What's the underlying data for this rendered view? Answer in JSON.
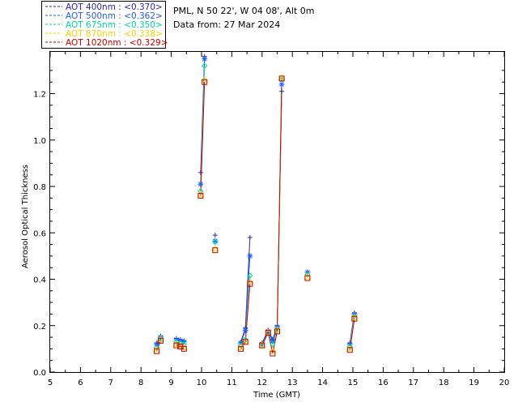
{
  "info": {
    "station": "PML, N 50 22', W 04 08', Alt 0m",
    "date": "Data from: 27 Mar 2024"
  },
  "legend": [
    {
      "label": "AOT  400nm : <0.370>",
      "color": "#2a2ab0"
    },
    {
      "label": "AOT  500nm : <0.362>",
      "color": "#1a5cff"
    },
    {
      "label": "AOT  675nm : <0.350>",
      "color": "#00d8a0"
    },
    {
      "label": "AOT  870nm : <0.338>",
      "color": "#ffd000"
    },
    {
      "label": "AOT 1020nm : <0.329>",
      "color": "#cc0000"
    }
  ],
  "chart_data": {
    "type": "line",
    "xlabel": "Time (GMT)",
    "ylabel": "Aerosol Optical Thickness",
    "xlim": [
      5,
      20
    ],
    "ylim": [
      0,
      1.38
    ],
    "x_ticks": [
      5,
      6,
      7,
      8,
      9,
      10,
      11,
      12,
      13,
      14,
      15,
      16,
      17,
      18,
      19,
      20
    ],
    "y_ticks": [
      0.0,
      0.2,
      0.4,
      0.6,
      0.8,
      1.0,
      1.2
    ],
    "y_tick_labels": [
      "0.0",
      "0.2",
      "0.4",
      "0.6",
      "0.8",
      "1.0",
      "1.2"
    ],
    "x": [
      8.52,
      8.65,
      9.17,
      9.3,
      9.42,
      9.97,
      10.1,
      10.45,
      11.3,
      11.45,
      11.6,
      12.0,
      12.2,
      12.35,
      12.5,
      12.65,
      13.5,
      14.9,
      15.05
    ],
    "segments": [
      [
        0,
        1
      ],
      [
        2,
        3,
        4
      ],
      [
        5,
        6
      ],
      [
        7
      ],
      [
        8,
        9,
        10
      ],
      [
        11,
        12,
        13,
        14,
        15
      ],
      [
        16
      ],
      [
        17,
        18
      ]
    ],
    "series": [
      {
        "name": "AOT  400nm : <0.370>",
        "marker": "plus",
        "values": [
          0.125,
          0.155,
          0.145,
          0.14,
          0.135,
          0.86,
          1.36,
          0.59,
          0.13,
          0.19,
          0.58,
          0.125,
          0.18,
          0.14,
          0.2,
          1.21,
          0.43,
          0.125,
          0.255
        ]
      },
      {
        "name": "AOT  500nm : <0.362>",
        "marker": "asterisk",
        "values": [
          0.12,
          0.15,
          0.14,
          0.135,
          0.13,
          0.81,
          1.35,
          0.565,
          0.125,
          0.18,
          0.5,
          0.12,
          0.175,
          0.135,
          0.195,
          1.24,
          0.43,
          0.12,
          0.25
        ]
      },
      {
        "name": "AOT  675nm : <0.350>",
        "marker": "diamond",
        "values": [
          0.105,
          0.145,
          0.13,
          0.125,
          0.12,
          0.78,
          1.32,
          0.56,
          0.115,
          0.14,
          0.415,
          0.12,
          0.17,
          0.12,
          0.185,
          1.26,
          0.42,
          0.11,
          0.24
        ]
      },
      {
        "name": "AOT  870nm : <0.338>",
        "marker": "triangle",
        "values": [
          0.095,
          0.14,
          0.12,
          0.115,
          0.105,
          0.765,
          1.26,
          0.53,
          0.105,
          0.13,
          0.39,
          0.115,
          0.17,
          0.09,
          0.18,
          1.27,
          0.41,
          0.1,
          0.235
        ]
      },
      {
        "name": "AOT 1020nm : <0.329>",
        "marker": "square",
        "values": [
          0.09,
          0.135,
          0.115,
          0.11,
          0.1,
          0.76,
          1.25,
          0.525,
          0.1,
          0.13,
          0.38,
          0.115,
          0.17,
          0.08,
          0.175,
          1.265,
          0.405,
          0.095,
          0.23
        ]
      }
    ]
  }
}
